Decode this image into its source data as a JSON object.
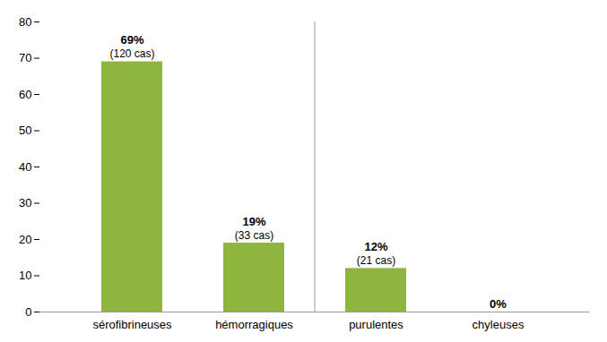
{
  "chart_data": {
    "type": "bar",
    "categories": [
      "sérofibrineuses",
      "hémorragiques",
      "purulentes",
      "chyleuses"
    ],
    "values": [
      69,
      19,
      12,
      0
    ],
    "data_labels": true,
    "value_labels": [
      "69%",
      "19%",
      "12%",
      "0%"
    ],
    "annotations": [
      "(120 cas)",
      "(33 cas)",
      "(21 cas)",
      null
    ],
    "color": "#8db540",
    "ylim": [
      0,
      80
    ],
    "yticks": [
      0,
      10,
      20,
      30,
      40,
      50,
      60,
      70,
      80
    ],
    "grid": false
  }
}
